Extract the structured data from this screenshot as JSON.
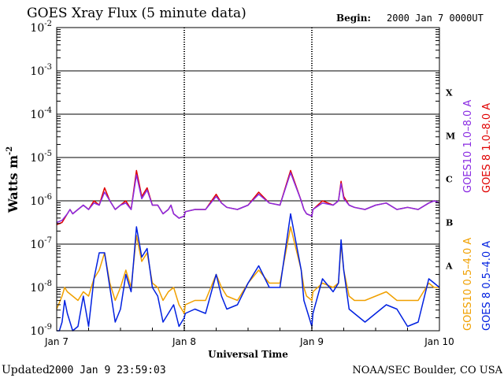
{
  "chart_data": {
    "type": "line",
    "title": "GOES Xray Flux (5 minute data)",
    "begin_label": "Begin:",
    "begin_value": "2000 Jan 7 0000UT",
    "ylabel": "Watts m",
    "ylabel_sup": "-2",
    "xlabel": "Universal Time",
    "updated_label": "Updated",
    "updated_value": "2000 Jan  9 23:59:03",
    "credit": "NOAA/SEC Boulder, CO USA",
    "yscale": "log",
    "ylim_exp": [
      -9,
      -2
    ],
    "y_ticks": [
      {
        "base": "10",
        "exp": "-2",
        "value_exp": -2
      },
      {
        "base": "10",
        "exp": "-3",
        "value_exp": -3
      },
      {
        "base": "10",
        "exp": "-4",
        "value_exp": -4
      },
      {
        "base": "10",
        "exp": "-5",
        "value_exp": -5
      },
      {
        "base": "10",
        "exp": "-6",
        "value_exp": -6
      },
      {
        "base": "10",
        "exp": "-7",
        "value_exp": -7
      },
      {
        "base": "10",
        "exp": "-8",
        "value_exp": -8
      },
      {
        "base": "10",
        "exp": "-9",
        "value_exp": -9
      }
    ],
    "x_domain_hours": [
      0,
      72
    ],
    "x_ticks": [
      {
        "label": "Jan 7",
        "hour": 0
      },
      {
        "label": "Jan 8",
        "hour": 24
      },
      {
        "label": "Jan 9",
        "hour": 48
      },
      {
        "label": "Jan 10",
        "hour": 72
      }
    ],
    "day_separators_hours": [
      24,
      48
    ],
    "flare_classes": [
      {
        "label": "X",
        "log_flux": -3.5
      },
      {
        "label": "M",
        "log_flux": -4.5
      },
      {
        "label": "C",
        "log_flux": -5.5
      },
      {
        "label": "B",
        "log_flux": -6.5
      },
      {
        "label": "A",
        "log_flux": -7.5
      }
    ],
    "legend": [
      {
        "label": "GOES10 1.0–8.0 A",
        "color": "#8a2be2",
        "group": "long"
      },
      {
        "label": "GOES 8 1.0–8.0 A",
        "color": "#e00000",
        "group": "long"
      },
      {
        "label": "GOES10 0.5–4.0 A",
        "color": "#f0a000",
        "group": "short"
      },
      {
        "label": "GOES 8 0.5–4.0 A",
        "color": "#0020e0",
        "group": "short"
      }
    ],
    "series": [
      {
        "name": "GOES 8 1.0-8.0 A",
        "color": "#e00000",
        "x_hours": [
          0,
          1,
          2,
          2.5,
          3,
          4,
          5,
          6,
          7,
          8,
          9,
          10,
          11,
          12,
          13,
          14,
          15,
          16,
          17,
          18,
          19,
          20,
          21,
          21.5,
          22,
          23,
          24,
          24.2,
          26,
          28,
          30,
          31,
          32,
          34,
          36,
          38,
          40,
          42,
          44,
          46,
          46.5,
          47,
          48,
          48.2,
          50,
          52,
          53,
          53.5,
          54,
          55,
          56,
          58,
          60,
          62,
          64,
          66,
          68,
          70,
          71,
          72
        ],
        "values_log": [
          -6.55,
          -6.5,
          -6.3,
          -6.2,
          -6.3,
          -6.2,
          -6.1,
          -6.2,
          -6.0,
          -6.1,
          -5.7,
          -6.0,
          -6.2,
          -6.1,
          -6.0,
          -6.2,
          -5.3,
          -5.9,
          -5.7,
          -6.1,
          -6.1,
          -6.3,
          -6.2,
          -6.1,
          -6.3,
          -6.4,
          -6.35,
          -6.25,
          -6.2,
          -6.2,
          -5.85,
          -6.05,
          -6.15,
          -6.2,
          -6.1,
          -5.8,
          -6.05,
          -6.1,
          -5.3,
          -6.0,
          -6.2,
          -6.3,
          -6.35,
          -6.2,
          -6.0,
          -6.1,
          -6.0,
          -5.55,
          -5.9,
          -6.1,
          -6.15,
          -6.2,
          -6.1,
          -6.05,
          -6.2,
          -6.15,
          -6.2,
          -6.05,
          -6.0,
          -6.05
        ]
      },
      {
        "name": "GOES10 1.0-8.0 A",
        "color": "#8a2be2",
        "x_hours": [
          0,
          1,
          2,
          2.5,
          3,
          4,
          5,
          6,
          7,
          8,
          9,
          10,
          11,
          12,
          13,
          14,
          15,
          16,
          17,
          18,
          19,
          20,
          21,
          21.5,
          22,
          23,
          24,
          24.2,
          26,
          28,
          30,
          31,
          32,
          34,
          36,
          38,
          40,
          42,
          44,
          46,
          46.5,
          47,
          48,
          48.2,
          50,
          52,
          53,
          53.5,
          54,
          55,
          56,
          58,
          60,
          62,
          64,
          66,
          68,
          70,
          71,
          72
        ],
        "values_log": [
          -6.5,
          -6.45,
          -6.3,
          -6.2,
          -6.3,
          -6.2,
          -6.1,
          -6.2,
          -6.05,
          -6.1,
          -5.8,
          -6.0,
          -6.2,
          -6.1,
          -6.05,
          -6.2,
          -5.4,
          -5.95,
          -5.75,
          -6.1,
          -6.1,
          -6.3,
          -6.2,
          -6.1,
          -6.3,
          -6.4,
          -6.35,
          -6.25,
          -6.2,
          -6.2,
          -5.9,
          -6.05,
          -6.15,
          -6.2,
          -6.1,
          -5.85,
          -6.05,
          -6.1,
          -5.35,
          -6.0,
          -6.2,
          -6.3,
          -6.35,
          -6.2,
          -6.05,
          -6.1,
          -6.0,
          -5.6,
          -5.95,
          -6.1,
          -6.15,
          -6.2,
          -6.1,
          -6.05,
          -6.2,
          -6.15,
          -6.2,
          -6.05,
          -6.0,
          -6.05
        ]
      },
      {
        "name": "GOES10 0.5-4.0 A",
        "color": "#f0a000",
        "x_hours": [
          0,
          1,
          1.5,
          2,
          3,
          4,
          5,
          6,
          7,
          8,
          9,
          10,
          11,
          12,
          13,
          14,
          15,
          16,
          17,
          18,
          19,
          20,
          21,
          22,
          23,
          24,
          24.2,
          26,
          28,
          30,
          31,
          32,
          34,
          36,
          38,
          40,
          42,
          44,
          46,
          46.5,
          47,
          48,
          48.2,
          50,
          52,
          53,
          53.5,
          54,
          55,
          56,
          58,
          60,
          62,
          64,
          66,
          68,
          70,
          71,
          72
        ],
        "values_log": [
          -8.5,
          -8.2,
          -8.0,
          -8.1,
          -8.2,
          -8.3,
          -8.1,
          -8.2,
          -7.8,
          -7.6,
          -7.2,
          -7.9,
          -8.3,
          -8.0,
          -7.6,
          -8.0,
          -6.8,
          -7.4,
          -7.2,
          -7.9,
          -8.0,
          -8.3,
          -8.1,
          -8.0,
          -8.4,
          -8.6,
          -8.4,
          -8.3,
          -8.3,
          -7.7,
          -8.0,
          -8.2,
          -8.3,
          -7.9,
          -7.6,
          -7.9,
          -7.9,
          -6.6,
          -7.6,
          -8.0,
          -8.2,
          -8.3,
          -8.1,
          -7.9,
          -8.0,
          -7.9,
          -7.0,
          -7.6,
          -8.2,
          -8.3,
          -8.3,
          -8.2,
          -8.1,
          -8.3,
          -8.3,
          -8.3,
          -7.9,
          -8.0,
          -8.0
        ]
      },
      {
        "name": "GOES 8 0.5-4.0 A",
        "color": "#0020e0",
        "x_hours": [
          0,
          0.5,
          1,
          1.5,
          2,
          3,
          4,
          5,
          6,
          7,
          8,
          9,
          10,
          11,
          12,
          13,
          14,
          15,
          16,
          17,
          18,
          19,
          20,
          21,
          22,
          23,
          24,
          24.2,
          26,
          28,
          30,
          31,
          32,
          34,
          36,
          38,
          40,
          42,
          44,
          46,
          46.5,
          47,
          48,
          48.2,
          50,
          52,
          53,
          53.5,
          54,
          55,
          56,
          58,
          60,
          62,
          64,
          66,
          68,
          70,
          71,
          72
        ],
        "values_log": [
          -9.0,
          -9.0,
          -8.8,
          -8.3,
          -8.6,
          -9.0,
          -8.9,
          -8.2,
          -8.9,
          -7.8,
          -7.2,
          -7.2,
          -8.0,
          -8.8,
          -8.5,
          -7.7,
          -8.1,
          -6.6,
          -7.3,
          -7.1,
          -8.0,
          -8.2,
          -8.8,
          -8.6,
          -8.4,
          -8.9,
          -8.7,
          -8.6,
          -8.5,
          -8.6,
          -7.7,
          -8.2,
          -8.5,
          -8.4,
          -7.9,
          -7.5,
          -8.0,
          -8.0,
          -6.3,
          -7.6,
          -8.3,
          -8.5,
          -8.9,
          -8.6,
          -7.8,
          -8.1,
          -7.9,
          -6.9,
          -7.6,
          -8.5,
          -8.6,
          -8.8,
          -8.6,
          -8.4,
          -8.5,
          -8.9,
          -8.8,
          -7.8,
          -7.9,
          -8.0
        ]
      }
    ]
  }
}
